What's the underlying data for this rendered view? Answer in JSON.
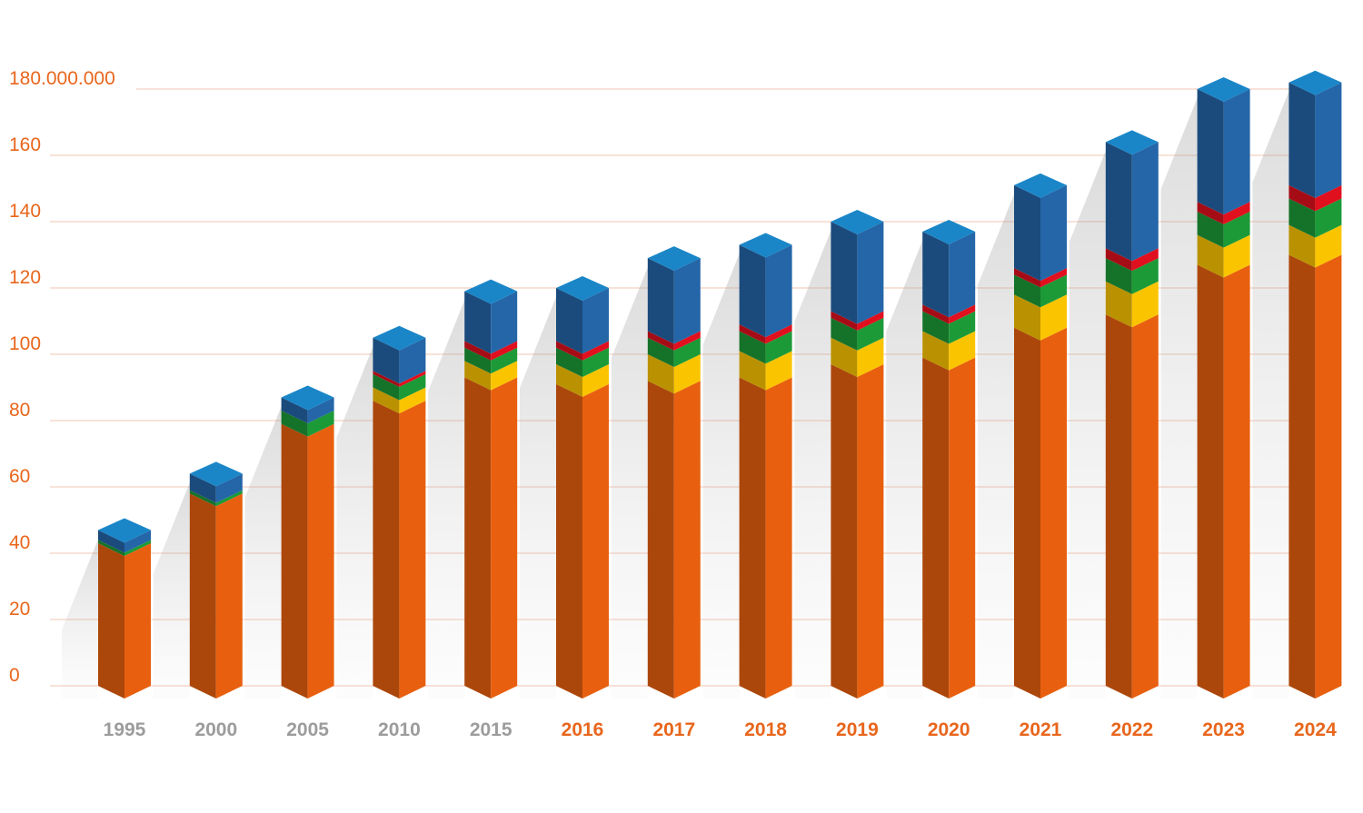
{
  "chart_data": {
    "type": "bar",
    "stacked": true,
    "style": "3d-isometric",
    "title": "",
    "xlabel": "",
    "ylabel": "",
    "ylim": [
      0,
      180
    ],
    "y_ticks": [
      {
        "value": 0,
        "label": "0"
      },
      {
        "value": 20,
        "label": "20"
      },
      {
        "value": 40,
        "label": "40"
      },
      {
        "value": 60,
        "label": "60"
      },
      {
        "value": 80,
        "label": "80"
      },
      {
        "value": 100,
        "label": "100"
      },
      {
        "value": 120,
        "label": "120"
      },
      {
        "value": 140,
        "label": "140"
      },
      {
        "value": 160,
        "label": "160"
      },
      {
        "value": 180,
        "label": "180.000.000"
      }
    ],
    "grid": true,
    "categories": [
      "1995",
      "2000",
      "2005",
      "2010",
      "2015",
      "2016",
      "2017",
      "2018",
      "2019",
      "2020",
      "2021",
      "2022",
      "2023",
      "2024"
    ],
    "highlighted_categories": [
      "2016",
      "2017",
      "2018",
      "2019",
      "2020",
      "2021",
      "2022",
      "2023",
      "2024"
    ],
    "series": [
      {
        "color": "#e8600f",
        "values": [
          43,
          58,
          79,
          86,
          93,
          91,
          92,
          93,
          97,
          99,
          108,
          112,
          127,
          130
        ]
      },
      {
        "color": "#fbc400",
        "values": [
          0,
          0,
          0,
          4,
          5,
          6,
          8,
          8,
          8,
          8,
          10,
          10,
          9,
          9
        ]
      },
      {
        "color": "#1c9a38",
        "values": [
          1,
          1,
          4,
          4,
          4,
          5,
          5,
          6,
          6,
          6,
          6,
          7,
          7,
          8
        ]
      },
      {
        "color": "#e0101e",
        "values": [
          0,
          0,
          0,
          1,
          2,
          2,
          2,
          2,
          2,
          2,
          2,
          3,
          3,
          4
        ]
      },
      {
        "color": "#2466a8",
        "values": [
          3,
          5,
          4,
          10,
          15,
          16,
          22,
          24,
          27,
          22,
          25,
          32,
          34,
          31
        ]
      }
    ],
    "colors": {
      "axis_label": "#e8661c",
      "category_gray": "#9c9c9c",
      "category_highlight": "#e8661c",
      "gridline": "#f2c4b0",
      "bar_top": "#1a86c8"
    }
  }
}
